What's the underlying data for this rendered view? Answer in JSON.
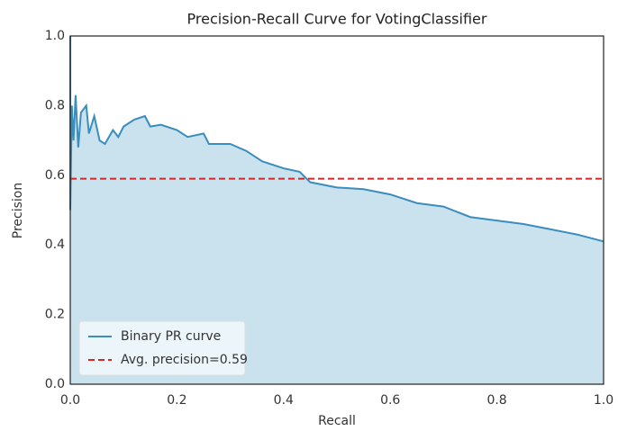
{
  "chart_data": {
    "type": "line",
    "title": "Precision-Recall Curve for VotingClassifier",
    "xlabel": "Recall",
    "ylabel": "Precision",
    "x": [
      0,
      0,
      0.003,
      0.006,
      0.01,
      0.015,
      0.02,
      0.03,
      0.035,
      0.045,
      0.055,
      0.065,
      0.08,
      0.09,
      0.1,
      0.12,
      0.14,
      0.15,
      0.17,
      0.2,
      0.22,
      0.25,
      0.26,
      0.3,
      0.33,
      0.36,
      0.4,
      0.43,
      0.45,
      0.5,
      0.55,
      0.6,
      0.65,
      0.7,
      0.75,
      0.8,
      0.85,
      0.9,
      0.95,
      1.0
    ],
    "series": [
      {
        "name": "Binary PR curve",
        "color": "#3a8dbc",
        "fill": "#c9e2ee",
        "values": [
          1.0,
          0.5,
          0.8,
          0.7,
          0.83,
          0.68,
          0.78,
          0.8,
          0.72,
          0.77,
          0.7,
          0.69,
          0.73,
          0.71,
          0.74,
          0.76,
          0.77,
          0.74,
          0.745,
          0.73,
          0.71,
          0.72,
          0.69,
          0.69,
          0.67,
          0.64,
          0.62,
          0.61,
          0.58,
          0.565,
          0.56,
          0.545,
          0.52,
          0.51,
          0.48,
          0.47,
          0.46,
          0.445,
          0.43,
          0.41
        ]
      }
    ],
    "reference_line": {
      "name": "Avg. precision=0.59",
      "value": 0.59,
      "color": "#d62728",
      "style": "dashed"
    },
    "xlim": [
      0,
      1
    ],
    "ylim": [
      0,
      1
    ],
    "xticks": [
      {
        "value": 0,
        "label": "0.0"
      },
      0.2,
      0.4,
      0.6,
      0.8,
      {
        "value": 1,
        "label": "1.0"
      }
    ],
    "yticks": [
      {
        "value": 0,
        "label": "0.0"
      },
      0.2,
      0.4,
      0.6,
      0.8,
      {
        "value": 1,
        "label": "1.0"
      }
    ],
    "grid": false,
    "legend": "lower left"
  }
}
